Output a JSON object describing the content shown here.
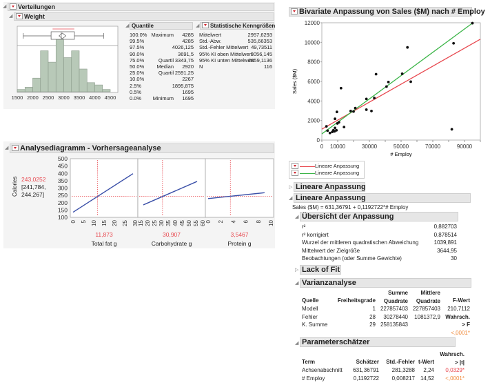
{
  "distributions": {
    "title": "Verteilungen",
    "variable": "Weight",
    "histogram": {
      "bins_start": 1500,
      "bin_width": 250,
      "counts": [
        1,
        2,
        6,
        18,
        13,
        25,
        15,
        18,
        10,
        4,
        3,
        1
      ],
      "ticks": [
        "1500",
        "2000",
        "2500",
        "3000",
        "3500",
        "4000",
        "4500"
      ]
    },
    "boxplot": {
      "min": 1695,
      "q1": 2591.25,
      "median": 2920,
      "q3": 3343.75,
      "max": 4285,
      "mean": 2957.63
    },
    "quantiles": {
      "title": "Quantile",
      "rows": [
        {
          "p": "100.0%",
          "label": "Maximum",
          "v": "4285"
        },
        {
          "p": "99.5%",
          "label": "",
          "v": "4285"
        },
        {
          "p": "97.5%",
          "label": "",
          "v": "4026,125"
        },
        {
          "p": "90.0%",
          "label": "",
          "v": "3691,5"
        },
        {
          "p": "75.0%",
          "label": "Quartil",
          "v": "3343,75"
        },
        {
          "p": "50.0%",
          "label": "Median",
          "v": "2920"
        },
        {
          "p": "25.0%",
          "label": "Quartil",
          "v": "2591,25"
        },
        {
          "p": "10.0%",
          "label": "",
          "v": "2267"
        },
        {
          "p": "2.5%",
          "label": "",
          "v": "1895,875"
        },
        {
          "p": "0.5%",
          "label": "",
          "v": "1695"
        },
        {
          "p": "0.0%",
          "label": "Minimum",
          "v": "1695"
        }
      ]
    },
    "stats": {
      "title": "Statistische Kenngrößen",
      "rows": [
        {
          "k": "Mittelwert",
          "v": "2957,6293"
        },
        {
          "k": "Std.-Abw.",
          "v": "535,66353"
        },
        {
          "k": "Std.-Fehler Mittelwert",
          "v": "49,73511"
        },
        {
          "k": "95% KI oben Mittelwert",
          "v": "3056,145"
        },
        {
          "k": "95% KI unten Mittelwert",
          "v": "2859,1136"
        },
        {
          "k": "N",
          "v": "116"
        }
      ]
    }
  },
  "profiler": {
    "title": "Analysediagramm - Vorhersageanalyse",
    "response": "Calories",
    "predicted": "243,0252",
    "ci_low": "[241,784,",
    "ci_high": "244,267]",
    "y_ticks": [
      "500",
      "450",
      "400",
      "350",
      "300",
      "250",
      "200",
      "150",
      "100"
    ],
    "y_range": [
      100,
      500
    ],
    "current_y": 243.0252,
    "factors": [
      {
        "name": "Total fat g",
        "value": "11,873",
        "current": 11.873,
        "range": [
          0,
          30
        ],
        "ticks": [
          "0",
          "5",
          "10",
          "15",
          "20",
          "25",
          "30"
        ],
        "line": [
          [
            0,
            135
          ],
          [
            29,
            398
          ]
        ]
      },
      {
        "name": "Carbohydrate g",
        "value": "30,907",
        "current": 30.907,
        "range": [
          15,
          60
        ],
        "ticks": [
          "15",
          "20",
          "25",
          "30",
          "35",
          "40",
          "45",
          "50",
          "55",
          "60"
        ],
        "line": [
          [
            17,
            185
          ],
          [
            56,
            345
          ]
        ]
      },
      {
        "name": "Protein g",
        "value": "3,5467",
        "current": 3.5467,
        "range": [
          0,
          10
        ],
        "ticks": [
          "0",
          "2",
          "4",
          "6",
          "8",
          "10"
        ],
        "line": [
          [
            0,
            228
          ],
          [
            9,
            268
          ]
        ]
      }
    ]
  },
  "bivariate": {
    "title": "Bivariate Anpassung von Sales ($M) nach # Employ",
    "chart_data": {
      "type": "scatter",
      "xlabel": "# Employ",
      "ylabel": "Sales ($M)",
      "xlim": [
        0,
        100000
      ],
      "ylim": [
        0,
        12000
      ],
      "x_ticks": [
        "0",
        "10000",
        "30000",
        "50000",
        "70000",
        "90000"
      ],
      "y_ticks": [
        "0",
        "2000",
        "4000",
        "6000",
        "8000",
        "10000",
        "12000"
      ],
      "points": [
        [
          2900,
          1400
        ],
        [
          3600,
          960
        ],
        [
          5100,
          725
        ],
        [
          6600,
          840
        ],
        [
          7300,
          1000
        ],
        [
          8000,
          890
        ],
        [
          8300,
          1240
        ],
        [
          8300,
          2175
        ],
        [
          9200,
          1000
        ],
        [
          9500,
          2880
        ],
        [
          9800,
          1700
        ],
        [
          10800,
          1820
        ],
        [
          12100,
          5310
        ],
        [
          14000,
          1330
        ],
        [
          18200,
          2970
        ],
        [
          20000,
          2920
        ],
        [
          21100,
          3270
        ],
        [
          28100,
          4210
        ],
        [
          28100,
          3110
        ],
        [
          31300,
          2970
        ],
        [
          33100,
          4300
        ],
        [
          34200,
          6740
        ],
        [
          40800,
          5470
        ],
        [
          42000,
          5940
        ],
        [
          50700,
          6780
        ],
        [
          54000,
          9480
        ],
        [
          56100,
          5970
        ],
        [
          82000,
          1100
        ],
        [
          83100,
          9900
        ],
        [
          95000,
          11960
        ]
      ],
      "fits": [
        {
          "name": "Lineare Anpassung",
          "color": "#e8484f",
          "intercept": 1120,
          "slope": 0.092
        },
        {
          "name": "Lineare Anpassung",
          "color": "#3cb548",
          "intercept": 631.36791,
          "slope": 0.1192722
        }
      ]
    },
    "legend": [
      "Lineare Anpassung",
      "Lineare Anpassung"
    ],
    "fit_collapsed": "Lineare Anpassung",
    "fit_open": "Lineare Anpassung",
    "equation": "Sales ($M) = 631,36791 + 0,1192722*# Employ",
    "summary": {
      "title": "Übersicht der Anpassung",
      "rows": [
        {
          "k": "r²",
          "v": "0,882703"
        },
        {
          "k": "r² korrigiert",
          "v": "0,878514"
        },
        {
          "k": "Wurzel der mittleren quadratischen Abweichung",
          "v": "1039,891"
        },
        {
          "k": "Mittelwert der Zielgröße",
          "v": "3644,95"
        },
        {
          "k": "Beobachtungen (oder Summe Gewichte)",
          "v": "30"
        }
      ]
    },
    "lack_of_fit": "Lack of Fit",
    "anova": {
      "title": "Varianzanalyse",
      "headers": [
        "Quelle",
        "Freiheitsgrade",
        "Summe Quadrate",
        "Mittlere Quadrate",
        "F-Wert"
      ],
      "rows": [
        [
          "Modell",
          "1",
          "227857403",
          "227857403",
          "210,7112"
        ],
        [
          "Fehler",
          "28",
          "30278440",
          "1081372,9",
          "Wahrsch."
        ],
        [
          "K. Summe",
          "29",
          "258135843",
          "",
          "> F"
        ]
      ],
      "p": "<,0001*"
    },
    "params": {
      "title": "Parameterschätzer",
      "headers": [
        "Term",
        "Schätzer",
        "Std.-Fehler",
        "t-Wert",
        "Wahrsch. > |t|"
      ],
      "rows": [
        [
          "Achsenabschnitt",
          "631,36791",
          "281,3288",
          "2,24",
          "0,0329*"
        ],
        [
          "# Employ",
          "0,1192722",
          "0,008217",
          "14,52",
          "<,0001*"
        ]
      ]
    }
  },
  "colors": {
    "accent_red": "#e8484f",
    "green": "#3cb548",
    "orange": "#f08a3a",
    "bar": "#b8c9b8",
    "line_blue": "#3a4fa8"
  }
}
